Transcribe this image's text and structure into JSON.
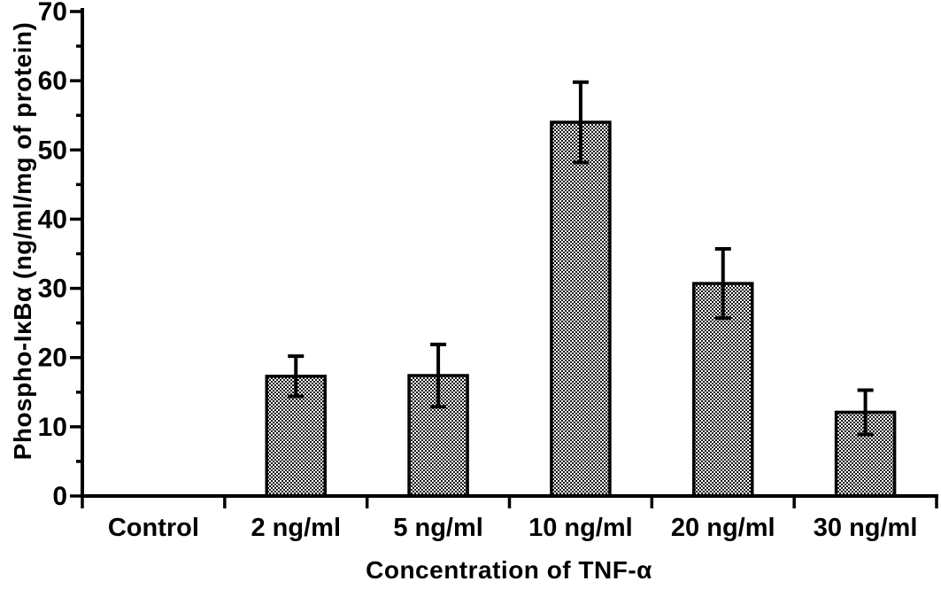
{
  "chart_data": {
    "type": "bar",
    "title": "",
    "xlabel": "Concentration of TNF-α",
    "ylabel": "Phospho-IκBα (ng/ml/mg of protein)",
    "categories": [
      "Control",
      "2 ng/ml",
      "5 ng/ml",
      "10 ng/ml",
      "20 ng/ml",
      "30 ng/ml"
    ],
    "values": [
      0,
      17.3,
      17.4,
      54,
      30.7,
      12.1
    ],
    "errors": [
      0,
      2.9,
      4.5,
      5.8,
      5.0,
      3.2
    ],
    "ylim": [
      0,
      70
    ],
    "ytick_major_step": 10,
    "ytick_minor_step": 5,
    "ytick_labels": [
      "0",
      "10",
      "20",
      "30",
      "40",
      "50",
      "60",
      "70"
    ],
    "grid": false,
    "legend_position": "none",
    "bar_fill": "black-white-checkerboard",
    "error_bar_style": "caps-both-ends",
    "colors": {
      "axis": "#000000",
      "text": "#000000",
      "bar_border": "#000000",
      "pattern_dark": "#141414",
      "pattern_light": "#ffffff",
      "background": "#ffffff"
    }
  }
}
